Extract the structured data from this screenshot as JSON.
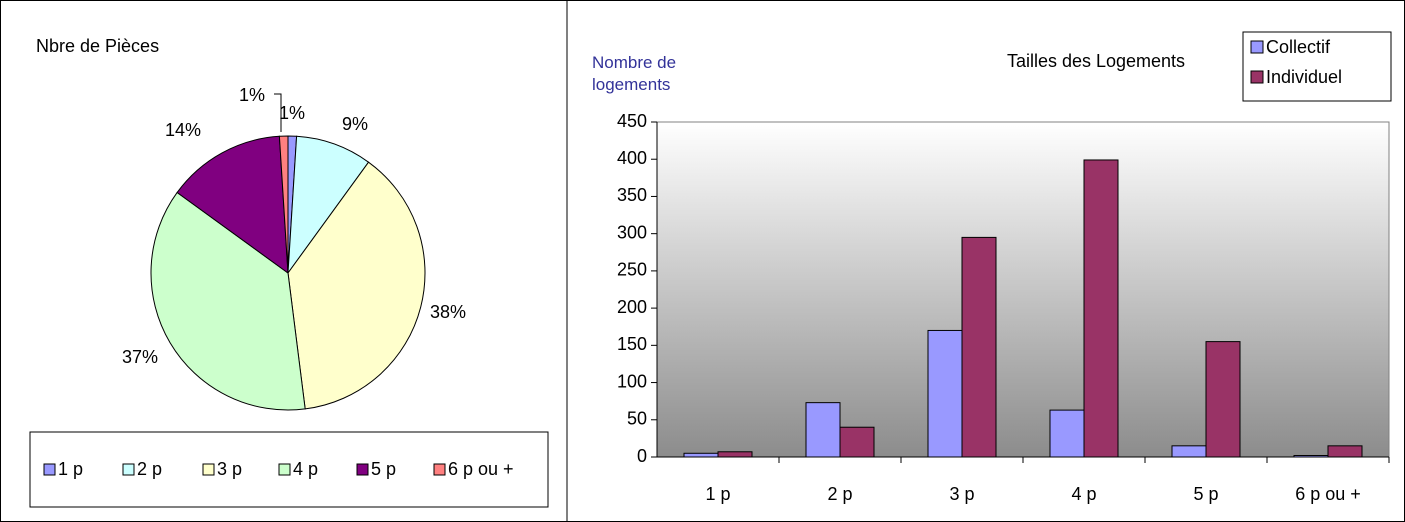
{
  "chart_data": [
    {
      "type": "pie",
      "title": "Nbre de Pièces",
      "categories": [
        "1 p",
        "2 p",
        "3 p",
        "4 p",
        "5 p",
        "6 p ou +"
      ],
      "values": [
        1,
        9,
        38,
        37,
        14,
        1
      ],
      "value_labels": [
        "1%",
        "9%",
        "38%",
        "37%",
        "14%",
        "1%"
      ],
      "colors": [
        "#9999ff",
        "#ccffff",
        "#ffffcc",
        "#ccffcc",
        "#800080",
        "#ff8080"
      ],
      "legend": "bottom"
    },
    {
      "type": "bar",
      "title": "Tailles des Logements",
      "y_label": "Nombre de logements",
      "categories": [
        "1 p",
        "2 p",
        "3 p",
        "4 p",
        "5 p",
        "6 p ou +"
      ],
      "series": [
        {
          "name": "Collectif",
          "color": "#9999ff",
          "values": [
            5,
            73,
            170,
            63,
            15,
            2
          ]
        },
        {
          "name": "Individuel",
          "color": "#993366",
          "values": [
            7,
            40,
            295,
            399,
            155,
            15
          ]
        }
      ],
      "ylim": [
        0,
        450
      ],
      "yticks": [
        0,
        50,
        100,
        150,
        200,
        250,
        300,
        350,
        400,
        450
      ],
      "legend": "top-right"
    }
  ]
}
